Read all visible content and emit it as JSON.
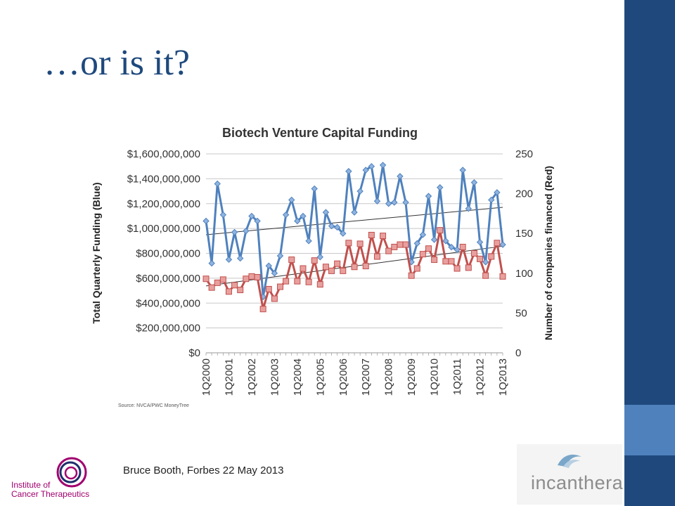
{
  "slide": {
    "title": "…or is it?",
    "citation": "Bruce Booth, Forbes 22 May 2013",
    "logo_left": {
      "line1": "Institute of",
      "line2": "Cancer Therapeutics"
    },
    "logo_right": {
      "text": "incanthera"
    },
    "colors": {
      "sidebar": "#1f497d",
      "accent": "#4f81bd",
      "title": "#1f497d"
    }
  },
  "chart_data": {
    "type": "line",
    "title": "Biotech Venture Capital Funding",
    "source": "Source: NVCA/PWC MoneyTree",
    "ylabel": "Total Quarterly Funding (Blue)",
    "y2label": "Number of companies financed  (Red)",
    "ylim": [
      0,
      1600000000
    ],
    "y2lim": [
      0,
      250
    ],
    "yticks": [
      "$0",
      "$200,000,000",
      "$400,000,000",
      "$600,000,000",
      "$800,000,000",
      "$1,000,000,000",
      "$1,200,000,000",
      "$1,400,000,000",
      "$1,600,000,000"
    ],
    "y2ticks": [
      "0",
      "50",
      "100",
      "150",
      "200",
      "250"
    ],
    "xtick_labels": [
      "1Q2000",
      "1Q2001",
      "1Q2002",
      "1Q2003",
      "1Q2004",
      "1Q2005",
      "1Q2006",
      "1Q2007",
      "1Q2008",
      "1Q2009",
      "1Q2010",
      "1Q2011",
      "1Q2012",
      "1Q2013"
    ],
    "grid": true,
    "legend": "none",
    "series": [
      {
        "color": "#4f81bd",
        "axis": "left",
        "marker": "diamond",
        "values": [
          1060000000,
          720000000,
          1360000000,
          1110000000,
          750000000,
          970000000,
          760000000,
          980000000,
          1100000000,
          1060000000,
          450000000,
          700000000,
          640000000,
          780000000,
          1110000000,
          1230000000,
          1060000000,
          1100000000,
          900000000,
          1320000000,
          770000000,
          1130000000,
          1020000000,
          1010000000,
          960000000,
          1460000000,
          1130000000,
          1300000000,
          1470000000,
          1500000000,
          1220000000,
          1510000000,
          1200000000,
          1210000000,
          1420000000,
          1210000000,
          730000000,
          880000000,
          950000000,
          1260000000,
          910000000,
          1330000000,
          900000000,
          850000000,
          830000000,
          1470000000,
          1160000000,
          1370000000,
          890000000,
          730000000,
          1230000000,
          1290000000,
          870000000
        ]
      },
      {
        "color": "#c0504d",
        "axis": "right",
        "marker": "square",
        "values": [
          93,
          82,
          88,
          92,
          77,
          85,
          79,
          93,
          96,
          95,
          55,
          80,
          68,
          83,
          90,
          117,
          90,
          106,
          89,
          116,
          86,
          108,
          103,
          112,
          103,
          138,
          108,
          137,
          109,
          148,
          121,
          147,
          128,
          133,
          136,
          136,
          97,
          106,
          124,
          131,
          117,
          154,
          115,
          115,
          106,
          133,
          107,
          125,
          118,
          97,
          121,
          138,
          96
        ]
      }
    ],
    "trendlines": [
      {
        "color": "#333333",
        "axis": "left",
        "from": 950000000,
        "to": 1170000000
      },
      {
        "color": "#333333",
        "axis": "right",
        "from": 84,
        "to": 134
      }
    ]
  }
}
